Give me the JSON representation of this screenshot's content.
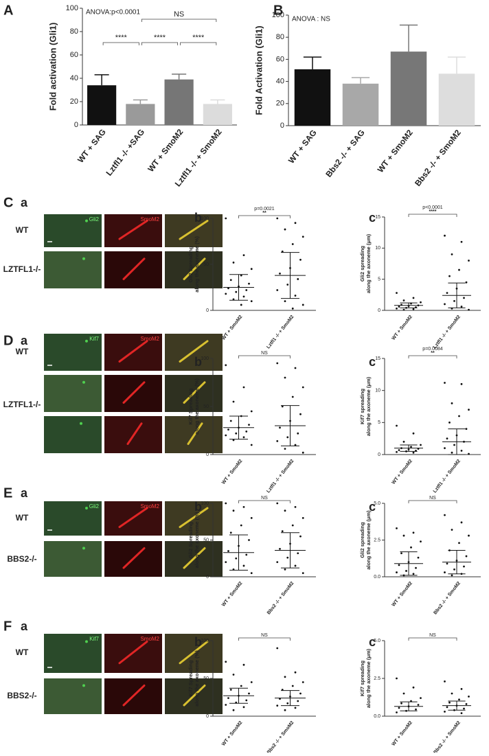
{
  "image_panels": [
    {
      "letter": "C",
      "sub": "a",
      "channels": [
        "Gli2",
        "SmoM2"
      ],
      "rows": [
        "WT",
        "LZTFL1-/-"
      ]
    },
    {
      "letter": "D",
      "sub": "a",
      "channels": [
        "Kif7",
        "SmoM2"
      ],
      "rows": [
        "WT",
        "LZTFL1-/-"
      ]
    },
    {
      "letter": "E",
      "sub": "a",
      "channels": [
        "Gli2",
        "SmoM2"
      ],
      "rows": [
        "WT",
        "BBS2-/-"
      ]
    },
    {
      "letter": "F",
      "sub": "a",
      "channels": [
        "Kif7",
        "SmoM2"
      ],
      "rows": [
        "WT",
        "BBS2-/-"
      ]
    }
  ],
  "chart_data": [
    {
      "type": "bar",
      "label": "A",
      "y_label": [
        "Fold activation (Gli1)"
      ],
      "annotation": "ANOVA:p<0.0001",
      "categories": [
        "WT + SAG",
        "Lztfl1 -/- +SAG",
        "WT + SmoM2",
        "Lztfl1 -/- + SmoM2"
      ],
      "values": [
        34,
        18,
        39,
        18
      ],
      "errors": [
        9,
        3.5,
        4.5,
        3.5
      ],
      "colors": [
        "#111111",
        "#9a9a9a",
        "#767676",
        "#dcdcdc"
      ],
      "ylim": [
        0,
        100
      ],
      "yticks": [
        0,
        20,
        40,
        60,
        80,
        100
      ],
      "brackets": [
        {
          "from": 0,
          "to": 1,
          "labels": [
            "****"
          ]
        },
        {
          "from": 1,
          "to": 2,
          "labels": [
            "****"
          ]
        },
        {
          "from": 2,
          "to": 3,
          "labels": [
            "****"
          ]
        },
        {
          "from": 1,
          "to": 3,
          "labels": [
            "NS"
          ]
        }
      ]
    },
    {
      "type": "bar",
      "label": "B",
      "y_label": [
        "Fold  Activation (Gli1)"
      ],
      "annotation": "ANOVA : NS",
      "categories": [
        "WT + SAG",
        "Bbs2 -/- + SAG",
        "WT + SmoM2",
        "Bbs2 -/- + SmoM2"
      ],
      "values": [
        51,
        38,
        67,
        47
      ],
      "errors": [
        11,
        5.5,
        24,
        15
      ],
      "colors": [
        "#111111",
        "#a8a8a8",
        "#777777",
        "#dddddd"
      ],
      "ylim": [
        0,
        100
      ],
      "yticks": [
        0,
        20,
        40,
        60,
        80,
        100
      ],
      "brackets": []
    },
    {
      "type": "dot",
      "label": "b",
      "y_label": [
        "Gli2 Spreading",
        "along the axoneme (%)"
      ],
      "categories": [
        "WT + SmoM2",
        "Lztfl1 -/- + SmoM2"
      ],
      "points": [
        [
          100,
          60,
          52,
          45,
          38,
          33,
          29,
          26,
          24,
          22,
          20,
          18,
          15,
          12,
          10,
          6
        ],
        [
          100,
          95,
          88,
          80,
          72,
          64,
          55,
          46,
          40,
          34,
          28,
          22,
          16,
          10,
          6,
          2
        ]
      ],
      "mean": [
        25,
        38
      ],
      "sd": [
        14,
        25
      ],
      "ylim": [
        0,
        100
      ],
      "yticks": [
        0,
        50,
        100
      ],
      "brackets": [
        {
          "from": 0,
          "to": 1,
          "labels": [
            "p=0.0021",
            "**"
          ]
        }
      ]
    },
    {
      "type": "dot",
      "label": "c",
      "y_label": [
        "Gli2 spreading",
        "along the axoneme (μm)"
      ],
      "categories": [
        "WT + SmoM2",
        "Lztfl1 -/- + SmoM2"
      ],
      "points": [
        [
          2.8,
          2,
          1.6,
          1.3,
          1.1,
          0.9,
          0.8,
          0.7,
          0.6,
          0.5,
          0.4,
          0.3,
          0.2,
          0.1
        ],
        [
          12,
          11,
          9,
          8,
          6.5,
          5.5,
          4.5,
          3.5,
          2.8,
          2,
          1.5,
          1,
          0.6,
          0.3,
          0.1
        ]
      ],
      "mean": [
        0.8,
        2.4
      ],
      "sd": [
        0.4,
        2
      ],
      "ylim": [
        0,
        15
      ],
      "yticks": [
        0,
        5,
        10,
        15
      ],
      "brackets": [
        {
          "from": 0,
          "to": 1,
          "labels": [
            "p<0.0001",
            "****"
          ]
        }
      ]
    },
    {
      "type": "dot",
      "label": "b",
      "y_label": [
        "Kif7 Spreading",
        "along the axoneme (%)"
      ],
      "categories": [
        "WT + SmoM2",
        "Lztfl1 -/- + SmoM2"
      ],
      "points": [
        [
          93,
          70,
          55,
          45,
          40,
          35,
          31,
          28,
          26,
          24,
          22,
          20,
          18,
          15,
          10
        ],
        [
          95,
          90,
          80,
          70,
          60,
          50,
          42,
          35,
          28,
          22,
          18,
          14,
          10,
          6,
          2
        ]
      ],
      "mean": [
        28,
        30
      ],
      "sd": [
        12,
        21
      ],
      "ylim": [
        0,
        100
      ],
      "yticks": [
        0,
        50,
        100
      ],
      "brackets": [
        {
          "from": 0,
          "to": 1,
          "labels": [
            "NS"
          ]
        }
      ]
    },
    {
      "type": "dot",
      "label": "c",
      "y_label": [
        "Kif7 spreading",
        "along the axoneme (μm)"
      ],
      "categories": [
        "WT + SmoM2",
        "Lztfl1 -/- + SmoM2"
      ],
      "points": [
        [
          4.5,
          3.3,
          2,
          1.5,
          1.2,
          1,
          0.9,
          0.8,
          0.7,
          0.6,
          0.5,
          0.4,
          0.3
        ],
        [
          11.2,
          11,
          8,
          7,
          6,
          5,
          4,
          3,
          2.5,
          2,
          1.5,
          1,
          0.6,
          0.3,
          0.1
        ]
      ],
      "mean": [
        1,
        2
      ],
      "sd": [
        0.5,
        2
      ],
      "ylim": [
        0,
        15
      ],
      "yticks": [
        0,
        5,
        10,
        15
      ],
      "brackets": [
        {
          "from": 0,
          "to": 1,
          "labels": [
            "p=0.0084",
            "**"
          ]
        }
      ]
    },
    {
      "type": "dot",
      "label": "b",
      "y_label": [
        "Gli2 Spreading",
        "along the axoneme (%)"
      ],
      "categories": [
        "WT + SmoM2",
        "Bbs2 -/- + SmoM2"
      ],
      "points": [
        [
          100,
          95,
          90,
          80,
          70,
          60,
          50,
          42,
          35,
          30,
          25,
          20,
          15,
          10,
          5
        ],
        [
          100,
          95,
          90,
          80,
          70,
          62,
          55,
          45,
          38,
          32,
          26,
          20,
          15,
          10,
          5
        ]
      ],
      "mean": [
        33,
        36
      ],
      "sd": [
        24,
        24
      ],
      "ylim": [
        0,
        100
      ],
      "yticks": [
        0,
        50,
        100
      ],
      "brackets": [
        {
          "from": 0,
          "to": 1,
          "labels": [
            "NS"
          ]
        }
      ]
    },
    {
      "type": "dot",
      "label": "c",
      "y_label": [
        "Gli2 spreading",
        "along the axoneme (μm)"
      ],
      "categories": [
        "WT + SmoM2",
        "Bbs2 -/- + SmoM2"
      ],
      "points": [
        [
          3.3,
          3,
          2.8,
          2.4,
          2,
          1.6,
          1.3,
          1,
          0.8,
          0.6,
          0.4,
          0.3,
          0.2,
          0.1
        ],
        [
          4.2,
          3.7,
          3.2,
          2.8,
          2.3,
          1.8,
          1.4,
          1.1,
          0.9,
          0.7,
          0.5,
          0.3,
          0.2,
          0.1
        ]
      ],
      "mean": [
        0.9,
        1.0
      ],
      "sd": [
        0.8,
        0.8
      ],
      "ylim": [
        0,
        5
      ],
      "yticks": [
        {
          "value": 0,
          "label": "0.0"
        },
        {
          "value": 2.5,
          "label": "2.5"
        },
        {
          "value": 5,
          "label": "5.0"
        }
      ],
      "brackets": [
        {
          "from": 0,
          "to": 1,
          "labels": [
            "NS"
          ]
        }
      ]
    },
    {
      "type": "dot",
      "label": "b",
      "y_label": [
        "Kif7 Spreading",
        "along the axoneme (%)"
      ],
      "categories": [
        "WT + SmoM2",
        "Bbs2 -/- + SmoM2"
      ],
      "points": [
        [
          72,
          68,
          55,
          45,
          40,
          35,
          30,
          27,
          24,
          21,
          18,
          15,
          12,
          8
        ],
        [
          90,
          58,
          52,
          45,
          40,
          35,
          30,
          26,
          23,
          20,
          17,
          14,
          11,
          8
        ]
      ],
      "mean": [
        27,
        24
      ],
      "sd": [
        10,
        10
      ],
      "ylim": [
        0,
        100
      ],
      "yticks": [
        0,
        50,
        100
      ],
      "brackets": [
        {
          "from": 0,
          "to": 1,
          "labels": [
            "NS"
          ]
        }
      ]
    },
    {
      "type": "dot",
      "label": "c",
      "y_label": [
        "Kif7 spreading",
        "along the axoneme (μm)"
      ],
      "categories": [
        "WT + SmoM2",
        "Bbs2 -/- + SmoM2"
      ],
      "points": [
        [
          2.5,
          1.9,
          1.5,
          1.2,
          1,
          0.85,
          0.75,
          0.65,
          0.55,
          0.45,
          0.35,
          0.25
        ],
        [
          2.3,
          1.8,
          1.5,
          1.3,
          1.1,
          0.9,
          0.8,
          0.7,
          0.6,
          0.5,
          0.4,
          0.3,
          0.2
        ]
      ],
      "mean": [
        0.65,
        0.7
      ],
      "sd": [
        0.3,
        0.3
      ],
      "ylim": [
        0,
        5
      ],
      "yticks": [
        {
          "value": 0,
          "label": "0.0"
        },
        {
          "value": 2.5,
          "label": "2.5"
        },
        {
          "value": 5,
          "label": "5.0"
        }
      ],
      "brackets": [
        {
          "from": 0,
          "to": 1,
          "labels": [
            "NS"
          ]
        }
      ]
    }
  ]
}
